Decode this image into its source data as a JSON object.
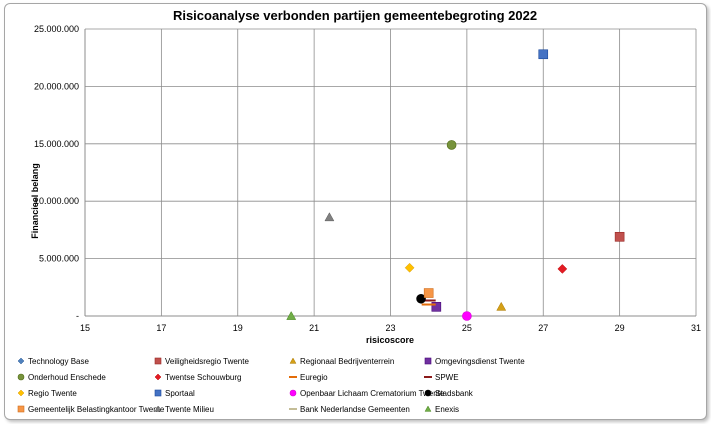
{
  "chart_data": {
    "type": "scatter",
    "title": "Risicoanalyse verbonden partijen gemeentebegroting 2022",
    "xlabel": "risicoscore",
    "ylabel": "Financieel belang",
    "xlim": [
      15,
      31
    ],
    "ylim": [
      0,
      25000000
    ],
    "x_ticks": [
      15,
      17,
      19,
      21,
      23,
      25,
      27,
      29,
      31
    ],
    "x_tick_labels": [
      "15",
      "17",
      "19",
      "21",
      "23",
      "25",
      "27",
      "29",
      "31"
    ],
    "y_ticks": [
      0,
      5000000,
      10000000,
      15000000,
      20000000,
      25000000
    ],
    "y_tick_labels": [
      "-",
      "5.000.000",
      "10.000.000",
      "15.000.000",
      "20.000.000",
      "25.000.000"
    ],
    "grid": "vertical and horizontal",
    "legend_position": "bottom",
    "series": [
      {
        "name": "Technology Base",
        "marker": "diamond",
        "color": "#4F81BD",
        "x": null,
        "y": null
      },
      {
        "name": "Veiligheidsregio Twente",
        "marker": "square",
        "color": "#C0504D",
        "x": 29.0,
        "y": 6900000
      },
      {
        "name": "Regionaal Bedrijventerrein",
        "marker": "triangle",
        "color": "#D4A017",
        "x": 25.9,
        "y": 800000
      },
      {
        "name": "Omgevingsdienst Twente",
        "marker": "square",
        "color": "#7030A0",
        "x": 24.2,
        "y": 800000
      },
      {
        "name": "Onderhoud Enschede",
        "marker": "circle",
        "color": "#77933C",
        "x": 24.6,
        "y": 14900000
      },
      {
        "name": "Twentse Schouwburg",
        "marker": "diamond",
        "color": "#E31B23",
        "x": 27.5,
        "y": 4100000
      },
      {
        "name": "Euregio",
        "marker": "dash",
        "color": "#E36C09",
        "x": 24.0,
        "y": 1000000
      },
      {
        "name": "SPWE",
        "marker": "dash",
        "color": "#8B1A1A",
        "x": 24.0,
        "y": 1350000
      },
      {
        "name": "Regio Twente",
        "marker": "diamond",
        "color": "#FFC000",
        "x": 23.5,
        "y": 4200000
      },
      {
        "name": "Sportaal",
        "marker": "square",
        "color": "#4472C4",
        "x": 27.0,
        "y": 22800000
      },
      {
        "name": "Openbaar Lichaam Crematorium Twente",
        "marker": "circle",
        "color": "#FF00FF",
        "x": 25.0,
        "y": 0
      },
      {
        "name": "Stadsbank",
        "marker": "circle",
        "color": "#000000",
        "x": 23.8,
        "y": 1500000
      },
      {
        "name": "Gemeentelijk Belastingkantoor Twente",
        "marker": "square",
        "color": "#F79646",
        "x": 24.0,
        "y": 2000000
      },
      {
        "name": "Twente Milieu",
        "marker": "triangle",
        "color": "#808080",
        "x": 21.4,
        "y": 8600000
      },
      {
        "name": "Bank Nederlandse Gemeenten",
        "marker": "dash",
        "color": "#C4BD97",
        "x": null,
        "y": null
      },
      {
        "name": "Enexis",
        "marker": "triangle",
        "color": "#70AD47",
        "x": 20.4,
        "y": 0
      }
    ]
  }
}
